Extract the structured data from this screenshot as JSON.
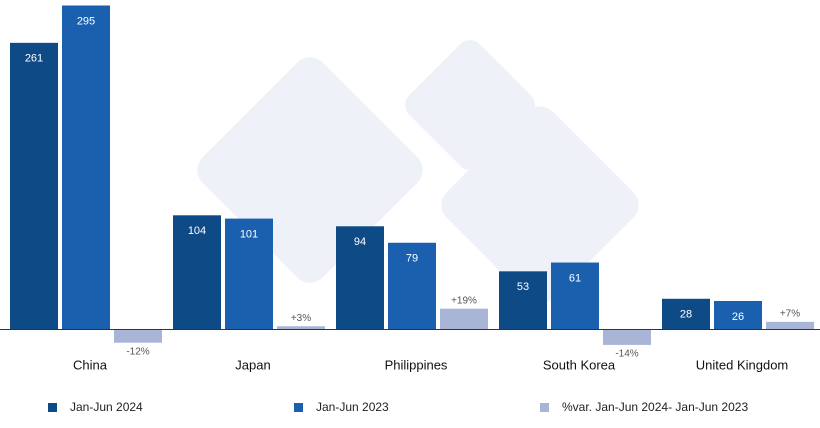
{
  "chart_data": {
    "type": "bar",
    "categories": [
      "China",
      "Japan",
      "Philippines",
      "South Korea",
      "United Kingdom"
    ],
    "series": [
      {
        "name": "Jan-Jun 2024",
        "color": "#0e4a86",
        "values": [
          261,
          104,
          94,
          53,
          28
        ]
      },
      {
        "name": "Jan-Jun 2023",
        "color": "#1a60ae",
        "values": [
          295,
          101,
          79,
          61,
          26
        ]
      },
      {
        "name": "%var. Jan-Jun 2024- Jan-Jun 2023",
        "color": "#a8b5d6",
        "values": [
          -12,
          3,
          19,
          -14,
          7
        ],
        "value_labels": [
          "-12%",
          "+3%",
          "+19%",
          "-14%",
          "+7%"
        ]
      }
    ],
    "ylim": [
      -25,
      300
    ]
  }
}
